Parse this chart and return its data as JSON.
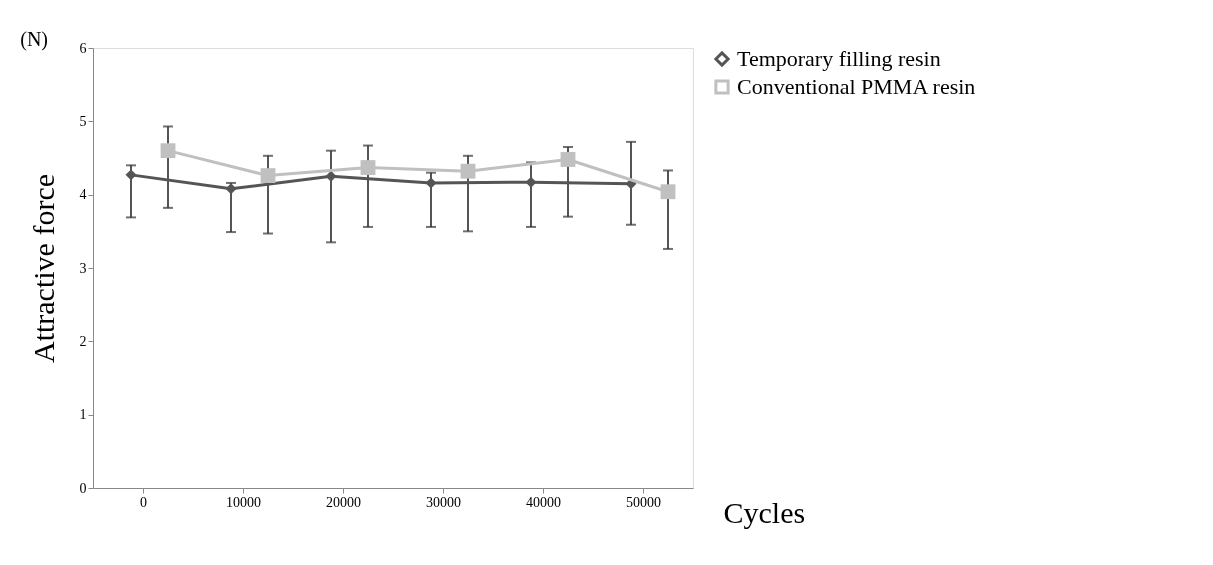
{
  "chart_data": {
    "type": "line",
    "categories": [
      "0",
      "10000",
      "20000",
      "30000",
      "40000",
      "50000"
    ],
    "xlabel": "Cycles",
    "ylabel": "Attractive force",
    "annotations": [
      "(N)"
    ],
    "ylim": [
      0,
      6
    ],
    "yticks": [
      0,
      1,
      2,
      3,
      4,
      5,
      6
    ],
    "grid": false,
    "legend": "right",
    "line_style": "solid",
    "series": [
      {
        "name": "Temporary filling resin",
        "color": "#555555",
        "marker": "diamond",
        "values": [
          4.27,
          4.08,
          4.25,
          4.16,
          4.17,
          4.15
        ],
        "errors": [
          [
            3.69,
            4.4
          ],
          [
            3.49,
            4.16
          ],
          [
            3.35,
            4.6
          ],
          [
            3.56,
            4.3
          ],
          [
            3.56,
            4.44
          ],
          [
            3.59,
            4.72
          ]
        ]
      },
      {
        "name": "Conventional PMMA resin",
        "color": "#c0c0c0",
        "marker": "square",
        "values": [
          4.6,
          4.26,
          4.37,
          4.32,
          4.48,
          4.04
        ],
        "errors": [
          [
            3.82,
            4.93
          ],
          [
            3.47,
            4.53
          ],
          [
            3.56,
            4.67
          ],
          [
            3.5,
            4.53
          ],
          [
            3.7,
            4.65
          ],
          [
            3.26,
            4.33
          ]
        ]
      }
    ]
  }
}
